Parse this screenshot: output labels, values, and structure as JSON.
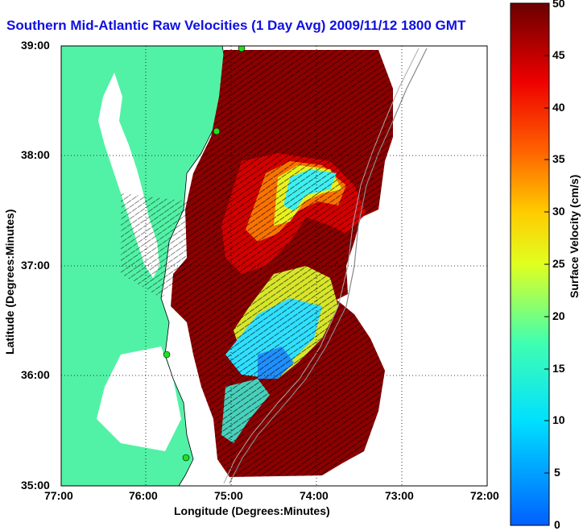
{
  "title": "Southern Mid-Atlantic Raw Velocities (1 Day Avg) 2009/11/12 1800 GMT",
  "xlabel": "Longitude (Degrees:Minutes)",
  "ylabel": "Latitude (Degrees:Minutes)",
  "x_ticks": [
    "77:00",
    "76:00",
    "75:00",
    "74:00",
    "73:00",
    "72:00"
  ],
  "y_ticks": [
    "39:00",
    "38:00",
    "37:00",
    "36:00",
    "35:00"
  ],
  "colorbar": {
    "label": "Surface Velocity (cm/s)",
    "ticks": [
      "0",
      "5",
      "10",
      "15",
      "20",
      "25",
      "30",
      "35",
      "40",
      "45",
      "50"
    ],
    "range": [
      0,
      50
    ],
    "unit": "cm/s"
  },
  "colors": {
    "land": "#52f2a6",
    "title": "#1010e0",
    "max_velocity": "#8b0000",
    "min_velocity": "#0060ff"
  }
}
